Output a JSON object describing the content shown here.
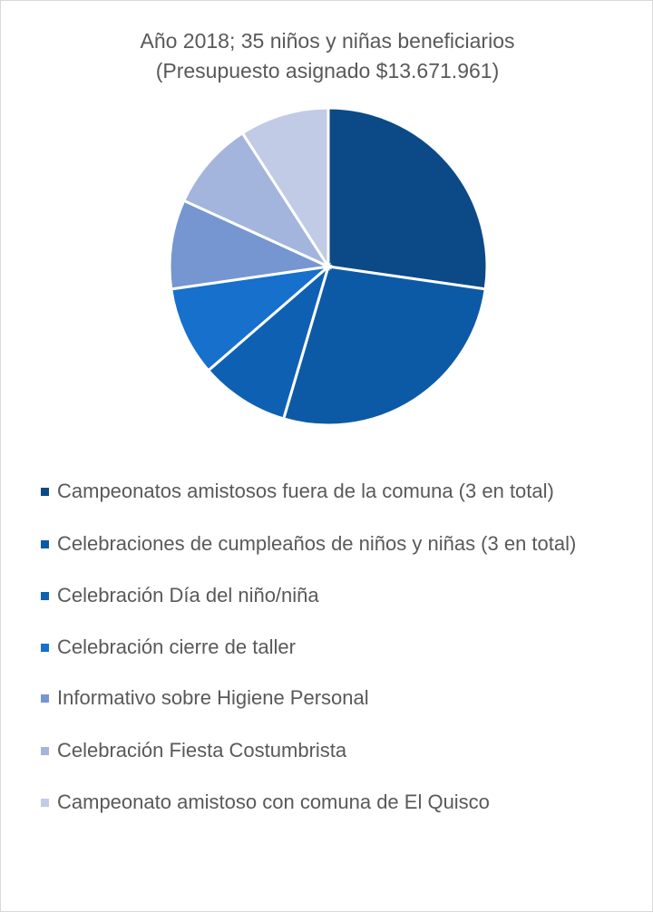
{
  "chart_data": {
    "type": "pie",
    "title": "Año 2018; 35 niños y niñas beneficiarios (Presupuesto asignado $13.671.961)",
    "categories": [
      "Campeonatos amistosos fuera de la comuna (3 en total)",
      "Celebraciones de cumpleaños de niños y niñas (3 en total)",
      "Celebración Día del niño/niña",
      "Celebración cierre de taller",
      "Informativo sobre Higiene Personal",
      "Celebración Fiesta Costumbrista",
      "Campeonato amistoso con comuna de El Quisco"
    ],
    "values": [
      3,
      3,
      1,
      1,
      1,
      1,
      1
    ],
    "colors": [
      "#0b4a87",
      "#0c5aa6",
      "#0e60b3",
      "#1670cc",
      "#7596d0",
      "#a3b5dd",
      "#c1cbe6"
    ],
    "legend": "bottom"
  }
}
